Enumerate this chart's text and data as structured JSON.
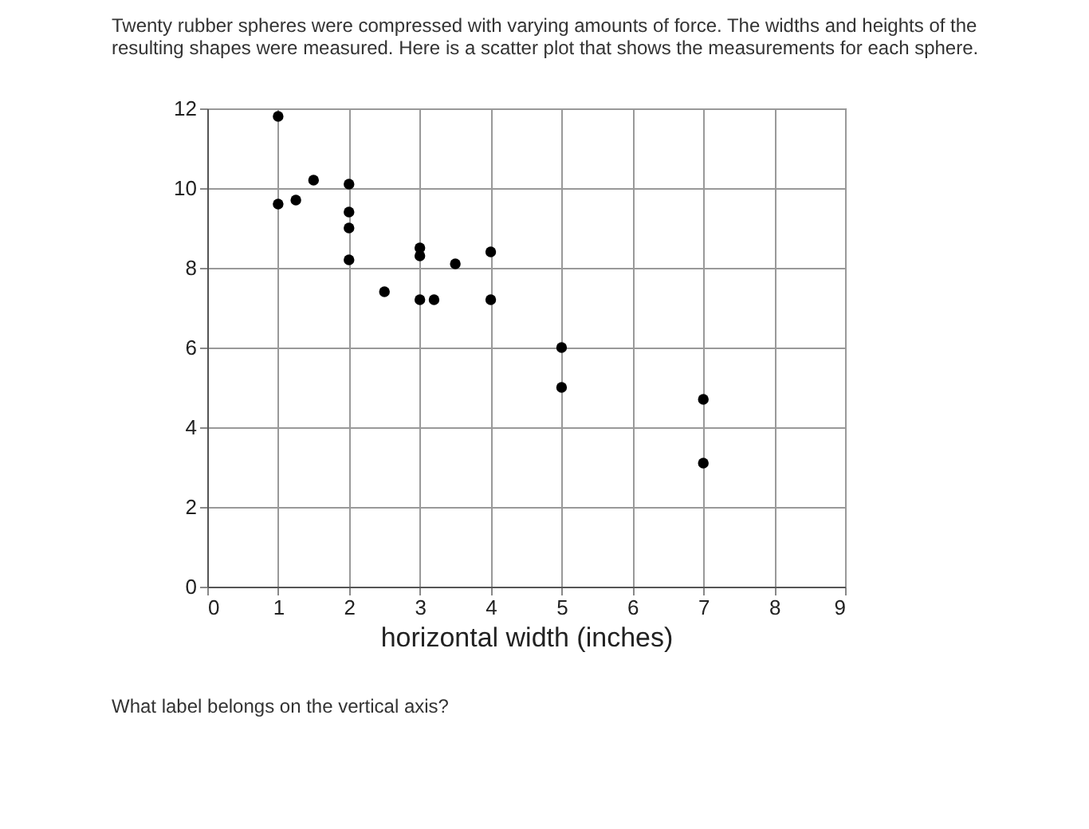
{
  "chart_data": {
    "type": "scatter",
    "title": "Twenty rubber spheres were compressed with varying amounts of force. The widths and heights of the resulting shapes were measured. Here is a scatter plot that shows the measurements for each sphere.",
    "xlabel": "horizontal width (inches)",
    "annotations": [
      "What label belongs on the vertical axis?"
    ],
    "series": [
      {
        "color": "#000000",
        "x": [
          1,
          1,
          1.25,
          1.5,
          2,
          2,
          2,
          2,
          2.5,
          3,
          3,
          3,
          3.2,
          3.5,
          4,
          4,
          5,
          5,
          7,
          7
        ],
        "values": [
          11.8,
          9.6,
          9.7,
          10.2,
          10.1,
          9.4,
          9.0,
          8.2,
          7.4,
          8.5,
          8.3,
          7.2,
          7.2,
          8.1,
          8.4,
          7.2,
          6.0,
          5.0,
          4.7,
          3.1
        ]
      }
    ],
    "xlim": [
      0,
      9
    ],
    "xticks": [
      0,
      1,
      2,
      3,
      4,
      5,
      6,
      7,
      8,
      9
    ],
    "ylim": [
      0,
      12
    ],
    "yticks": [
      0,
      2,
      4,
      6,
      8,
      10,
      12
    ],
    "grid": true,
    "marker": "circle"
  }
}
